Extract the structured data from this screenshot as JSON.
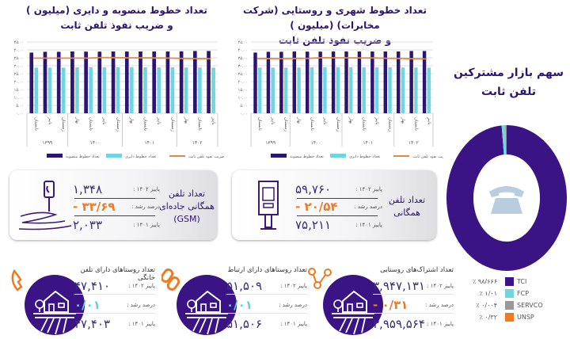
{
  "colors": {
    "installed": "#2b1570",
    "active": "#6fd6df",
    "penetration": "#e08a48",
    "tci": "#3a1485",
    "fcp": "#6fd6df",
    "servco": "#999999",
    "unsp": "#f07a22"
  },
  "chart_data": [
    {
      "type": "bar",
      "title_line1": "تعداد خطوط منصوبه و دایری (میلیون )",
      "title_line2": "و ضریب نفوذ تلفن ثابت",
      "ylim": [
        0,
        45
      ],
      "yticks": [
        "۰.۰۰",
        "۵.۰۰",
        "۱۰.۰۰",
        "۱۵.۰۰",
        "۲۰.۰۰",
        "۲۵.۰۰",
        "۳۰.۰۰",
        "۳۵.۰۰",
        "۴۰.۰۰",
        "۴۵.۰۰"
      ],
      "grid": true,
      "legend": "bottom",
      "categories": [
        "تابستان",
        "پاییز",
        "زمستان",
        "بهار",
        "تابستان",
        "پاییز",
        "زمستان",
        "بهار",
        "تابستان",
        "پاییز",
        "زمستان",
        "بهار",
        "تابستان",
        "پاییز"
      ],
      "years": [
        {
          "label": "۱۳۹۹",
          "span": 3
        },
        {
          "label": "۱۴۰۰",
          "span": 4
        },
        {
          "label": "۱۴۰۱",
          "span": 4
        },
        {
          "label": "۱۴۰۲",
          "span": 3
        }
      ],
      "series": [
        {
          "name": "تعداد خطوط منصوبه",
          "kind": "bar",
          "values": [
            38.3,
            38.8,
            38.8,
            39.0,
            38.9,
            38.9,
            39.0,
            39.0,
            39.0,
            39.0,
            39.0,
            39.1,
            39.3,
            39.3
          ]
        },
        {
          "name": "تعداد خطوط دایری",
          "kind": "bar",
          "values": [
            28.8,
            28.8,
            28.8,
            29.0,
            29.0,
            29.0,
            29.1,
            29.0,
            29.0,
            29.0,
            29.0,
            28.9,
            28.9,
            28.8
          ]
        },
        {
          "name": "ضریب نفوذ تلفن ثابت",
          "kind": "line",
          "values": [
            34.8,
            34.8,
            34.8,
            34.8,
            34.8,
            35.2,
            35.1,
            35.0,
            35.0,
            34.9,
            34.8,
            34.6,
            34.5,
            34.4
          ]
        }
      ]
    },
    {
      "type": "bar",
      "title_line1": "تعداد خطوط شهری و روستایی (شرکت مخابرات) (میلیون )",
      "title_line2": "و ضریب نفوذ تلفن ثابت",
      "ylim": [
        0,
        45
      ],
      "yticks": [
        "۰.۰۰",
        "۵.۰۰",
        "۱۰.۰۰",
        "۱۵.۰۰",
        "۲۰.۰۰",
        "۲۵.۰۰",
        "۳۰.۰۰",
        "۳۵.۰۰",
        "۴۰.۰۰",
        "۴۵.۰۰"
      ],
      "grid": true,
      "legend": "bottom",
      "categories": [
        "تابستان",
        "پاییز",
        "زمستان",
        "بهار",
        "تابستان",
        "پاییز",
        "زمستان",
        "بهار",
        "تابستان",
        "پاییز",
        "زمستان",
        "بهار",
        "تابستان",
        "پاییز"
      ],
      "years": [
        {
          "label": "۱۳۹۹",
          "span": 3
        },
        {
          "label": "۱۴۰۰",
          "span": 4
        },
        {
          "label": "۱۴۰۱",
          "span": 4
        },
        {
          "label": "۱۴۰۲",
          "span": 3
        }
      ],
      "series": [
        {
          "name": "تعداد خطوط منصوبه",
          "kind": "bar",
          "values": [
            38.3,
            38.8,
            38.8,
            39.0,
            38.9,
            38.9,
            39.0,
            39.0,
            39.0,
            39.0,
            39.0,
            39.0,
            39.3,
            39.3
          ]
        },
        {
          "name": "تعداد خطوط دایری",
          "kind": "bar",
          "values": [
            28.8,
            28.8,
            28.8,
            28.9,
            29.0,
            29.1,
            29.1,
            29.0,
            29.0,
            29.0,
            29.0,
            28.9,
            28.9,
            28.8
          ]
        },
        {
          "name": "ضریب نفوذ تلفن ثابت",
          "kind": "line",
          "values": [
            34.5,
            34.5,
            34.5,
            34.6,
            34.7,
            35.1,
            35.0,
            35.0,
            34.9,
            34.9,
            34.7,
            34.6,
            34.4,
            34.3
          ]
        }
      ]
    },
    {
      "type": "pie",
      "title_line1": "سهم بازار مشترکین",
      "title_line2": "تلفن ثابت",
      "donut": true,
      "slices": [
        {
          "name": "TCI",
          "value": 98.666,
          "label": "۹۸/۶۶۶ ٪"
        },
        {
          "name": "FCP",
          "value": 1.01,
          "label": "۱/۰۱ ٪"
        },
        {
          "name": "SERVCO",
          "value": 0.004,
          "label": "۰/۰۰۴ ٪"
        },
        {
          "name": "UNSP",
          "value": 0.32,
          "label": "۰/۳۲ ٪"
        }
      ]
    }
  ],
  "gsm": {
    "title": "تعداد تلفن همگانی جاده‌ای (GSM)",
    "l1": "پاییز ۱۴۰۲ :",
    "v1": "۱,۳۴۸",
    "l2": "درصد رشد :",
    "v2": "- ۳۳/۶۹",
    "l3": "پاییز ۱۴۰۱ :",
    "v3": "۲,۰۳۳"
  },
  "payphone": {
    "title": "تعداد تلفن همگانی",
    "l1": "پاییز ۱۴۰۲ :",
    "v1": "۵۹,۷۶۰",
    "l2": "درصد رشد :",
    "v2": "- ۲۰/۵۴",
    "l3": "پاییز ۱۴۰۱ :",
    "v3": "۷۵,۲۱۱"
  },
  "villages_home": {
    "title": "تعداد روستاهای دارای تلفن خانگی",
    "l1": "پاییز ۱۴۰۲ :",
    "v1": "۴۷,۴۱۰",
    "l2": "درصد رشد :",
    "v2": "۰/۰۱",
    "l3": "پاییز ۱۴۰۱ :",
    "v3": "۴۷,۴۰۳"
  },
  "villages_conn": {
    "title": "تعداد روستاهای دارای ارتباط",
    "l1": "پاییز ۱۴۰۲ :",
    "v1": "۵۱,۵۰۹",
    "l2": "درصد رشد :",
    "v2": "۰/۰۱",
    "l3": "پاییز ۱۴۰۱ :",
    "v3": "۵۱,۵۰۶"
  },
  "rural_subs": {
    "title": "تعداد اشتراک‌های روستایی",
    "l1": "پاییز ۱۴۰۲ :",
    "v1": "۳,۹۴۷,۱۳۱",
    "l2": "درصد رشد :",
    "v2": "- ۰/۳۱",
    "l3": "پاییز ۱۴۰۱ :",
    "v3": "۳,۹۵۹,۵۶۴"
  }
}
